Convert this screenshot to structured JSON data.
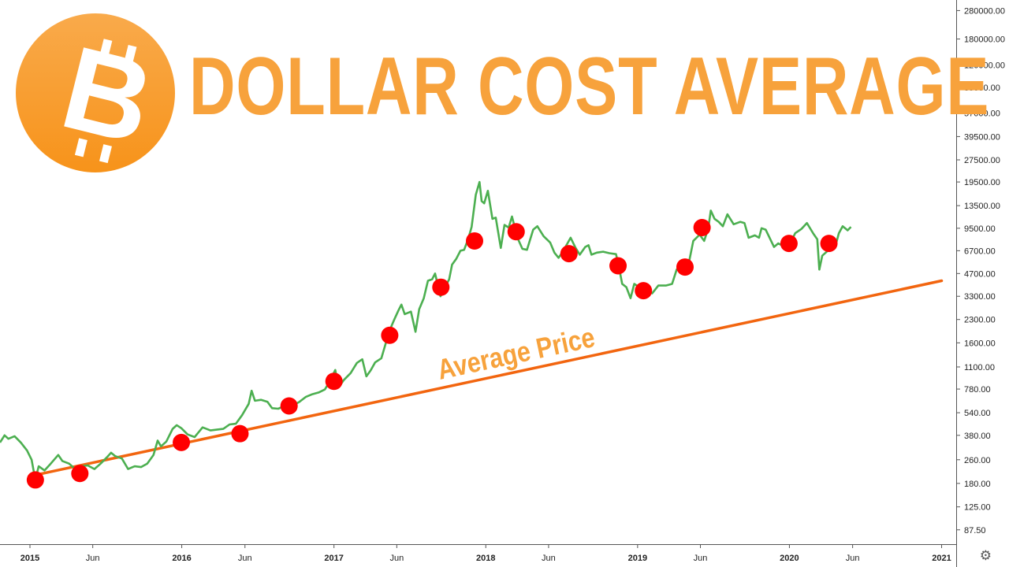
{
  "header": {
    "title": "DOLLAR COST AVERAGE"
  },
  "logo": {
    "glyph": "B",
    "color": "#f7931a"
  },
  "chart_data": {
    "type": "line",
    "ylabel": "",
    "xlabel": "",
    "yscale": "log",
    "ylim": [
      70,
      330000
    ],
    "yticks": [
      87.5,
      125,
      180,
      260,
      380,
      540,
      780,
      1100,
      1600,
      2300,
      3300,
      4700,
      6700,
      9500,
      13500,
      19500,
      27500,
      39500,
      57000,
      85000,
      120000,
      180000,
      280000
    ],
    "ytick_labels": [
      "87.50",
      "125.00",
      "180.00",
      "260.00",
      "380.00",
      "540.00",
      "780.00",
      "1100.00",
      "1600.00",
      "2300.00",
      "3300.00",
      "4700.00",
      "6700.00",
      "9500.00",
      "13500.00",
      "19500.00",
      "27500.00",
      "39500.00",
      "57000.00",
      "85000.00",
      "120000.00",
      "180000.00",
      "280000.00"
    ],
    "xlim": [
      "2014-10-21",
      "2021-02-05"
    ],
    "xticks": [
      {
        "date": "2015-01-01",
        "label": "2015",
        "major": true
      },
      {
        "date": "2015-06-01",
        "label": "Jun",
        "major": false
      },
      {
        "date": "2016-01-01",
        "label": "2016",
        "major": true
      },
      {
        "date": "2016-06-01",
        "label": "Jun",
        "major": false
      },
      {
        "date": "2017-01-01",
        "label": "2017",
        "major": true
      },
      {
        "date": "2017-06-01",
        "label": "Jun",
        "major": false
      },
      {
        "date": "2018-01-01",
        "label": "2018",
        "major": true
      },
      {
        "date": "2018-06-01",
        "label": "Jun",
        "major": false
      },
      {
        "date": "2019-01-01",
        "label": "2019",
        "major": true
      },
      {
        "date": "2019-06-01",
        "label": "Jun",
        "major": false
      },
      {
        "date": "2020-01-01",
        "label": "2020",
        "major": true
      },
      {
        "date": "2020-06-01",
        "label": "Jun",
        "major": false
      },
      {
        "date": "2021-01-01",
        "label": "2021",
        "major": true
      }
    ],
    "series": [
      {
        "kind": "price",
        "color": "#4caf50",
        "points": [
          [
            "2014-10-21",
            340
          ],
          [
            "2014-11-01",
            380
          ],
          [
            "2014-11-10",
            360
          ],
          [
            "2014-11-25",
            375
          ],
          [
            "2014-12-10",
            340
          ],
          [
            "2014-12-25",
            300
          ],
          [
            "2015-01-05",
            260
          ],
          [
            "2015-01-14",
            190
          ],
          [
            "2015-01-22",
            235
          ],
          [
            "2015-02-05",
            220
          ],
          [
            "2015-02-20",
            245
          ],
          [
            "2015-03-10",
            280
          ],
          [
            "2015-03-20",
            255
          ],
          [
            "2015-04-05",
            245
          ],
          [
            "2015-04-20",
            225
          ],
          [
            "2015-05-05",
            235
          ],
          [
            "2015-05-20",
            238
          ],
          [
            "2015-06-05",
            225
          ],
          [
            "2015-06-20",
            245
          ],
          [
            "2015-07-05",
            270
          ],
          [
            "2015-07-15",
            290
          ],
          [
            "2015-07-25",
            275
          ],
          [
            "2015-08-10",
            265
          ],
          [
            "2015-08-25",
            225
          ],
          [
            "2015-09-10",
            235
          ],
          [
            "2015-09-25",
            232
          ],
          [
            "2015-10-10",
            245
          ],
          [
            "2015-10-25",
            280
          ],
          [
            "2015-11-04",
            350
          ],
          [
            "2015-11-12",
            320
          ],
          [
            "2015-11-25",
            345
          ],
          [
            "2015-12-10",
            420
          ],
          [
            "2015-12-20",
            445
          ],
          [
            "2015-12-31",
            425
          ],
          [
            "2016-01-15",
            385
          ],
          [
            "2016-02-01",
            370
          ],
          [
            "2016-02-20",
            430
          ],
          [
            "2016-03-10",
            410
          ],
          [
            "2016-03-25",
            415
          ],
          [
            "2016-04-10",
            420
          ],
          [
            "2016-04-25",
            450
          ],
          [
            "2016-05-10",
            455
          ],
          [
            "2016-05-25",
            520
          ],
          [
            "2016-06-10",
            620
          ],
          [
            "2016-06-17",
            760
          ],
          [
            "2016-06-25",
            650
          ],
          [
            "2016-07-10",
            660
          ],
          [
            "2016-07-25",
            640
          ],
          [
            "2016-08-05",
            580
          ],
          [
            "2016-08-20",
            575
          ],
          [
            "2016-09-10",
            610
          ],
          [
            "2016-09-25",
            605
          ],
          [
            "2016-10-10",
            640
          ],
          [
            "2016-10-25",
            690
          ],
          [
            "2016-11-10",
            720
          ],
          [
            "2016-11-25",
            740
          ],
          [
            "2016-12-10",
            775
          ],
          [
            "2016-12-20",
            860
          ],
          [
            "2017-01-04",
            1050
          ],
          [
            "2017-01-12",
            800
          ],
          [
            "2017-01-25",
            900
          ],
          [
            "2017-02-10",
            1000
          ],
          [
            "2017-02-25",
            1170
          ],
          [
            "2017-03-10",
            1240
          ],
          [
            "2017-03-20",
            950
          ],
          [
            "2017-03-30",
            1040
          ],
          [
            "2017-04-10",
            1180
          ],
          [
            "2017-04-25",
            1260
          ],
          [
            "2017-05-10",
            1750
          ],
          [
            "2017-05-20",
            2100
          ],
          [
            "2017-05-26",
            2300
          ],
          [
            "2017-06-05",
            2650
          ],
          [
            "2017-06-12",
            2900
          ],
          [
            "2017-06-20",
            2500
          ],
          [
            "2017-07-05",
            2600
          ],
          [
            "2017-07-16",
            1900
          ],
          [
            "2017-07-25",
            2700
          ],
          [
            "2017-08-05",
            3200
          ],
          [
            "2017-08-15",
            4200
          ],
          [
            "2017-08-25",
            4300
          ],
          [
            "2017-09-01",
            4700
          ],
          [
            "2017-09-14",
            3300
          ],
          [
            "2017-09-25",
            3800
          ],
          [
            "2017-10-05",
            4300
          ],
          [
            "2017-10-12",
            5400
          ],
          [
            "2017-10-22",
            5900
          ],
          [
            "2017-11-01",
            6700
          ],
          [
            "2017-11-10",
            6800
          ],
          [
            "2017-11-20",
            8100
          ],
          [
            "2017-11-28",
            9700
          ],
          [
            "2017-12-08",
            16000
          ],
          [
            "2017-12-17",
            19500
          ],
          [
            "2017-12-22",
            14500
          ],
          [
            "2017-12-28",
            14000
          ],
          [
            "2018-01-06",
            17000
          ],
          [
            "2018-01-17",
            11000
          ],
          [
            "2018-01-25",
            11200
          ],
          [
            "2018-02-06",
            7000
          ],
          [
            "2018-02-15",
            10000
          ],
          [
            "2018-02-25",
            9600
          ],
          [
            "2018-03-05",
            11400
          ],
          [
            "2018-03-18",
            8200
          ],
          [
            "2018-03-30",
            6900
          ],
          [
            "2018-04-10",
            6800
          ],
          [
            "2018-04-25",
            9300
          ],
          [
            "2018-05-05",
            9800
          ],
          [
            "2018-05-20",
            8400
          ],
          [
            "2018-06-05",
            7600
          ],
          [
            "2018-06-15",
            6500
          ],
          [
            "2018-06-25",
            6000
          ],
          [
            "2018-07-05",
            6600
          ],
          [
            "2018-07-24",
            8200
          ],
          [
            "2018-08-05",
            7000
          ],
          [
            "2018-08-15",
            6300
          ],
          [
            "2018-08-28",
            7100
          ],
          [
            "2018-09-05",
            7300
          ],
          [
            "2018-09-12",
            6300
          ],
          [
            "2018-09-25",
            6500
          ],
          [
            "2018-10-10",
            6600
          ],
          [
            "2018-10-25",
            6450
          ],
          [
            "2018-11-10",
            6350
          ],
          [
            "2018-11-15",
            5600
          ],
          [
            "2018-11-25",
            4000
          ],
          [
            "2018-12-05",
            3800
          ],
          [
            "2018-12-15",
            3200
          ],
          [
            "2018-12-24",
            4000
          ],
          [
            "2019-01-05",
            3800
          ],
          [
            "2019-01-20",
            3600
          ],
          [
            "2019-02-05",
            3450
          ],
          [
            "2019-02-20",
            3900
          ],
          [
            "2019-03-10",
            3900
          ],
          [
            "2019-03-25",
            4000
          ],
          [
            "2019-04-05",
            5000
          ],
          [
            "2019-04-20",
            5300
          ],
          [
            "2019-05-05",
            5700
          ],
          [
            "2019-05-15",
            7800
          ],
          [
            "2019-05-30",
            8600
          ],
          [
            "2019-06-10",
            7800
          ],
          [
            "2019-06-20",
            9500
          ],
          [
            "2019-06-26",
            12500
          ],
          [
            "2019-07-05",
            11000
          ],
          [
            "2019-07-15",
            10500
          ],
          [
            "2019-07-25",
            9800
          ],
          [
            "2019-08-05",
            11800
          ],
          [
            "2019-08-20",
            10100
          ],
          [
            "2019-09-05",
            10500
          ],
          [
            "2019-09-15",
            10300
          ],
          [
            "2019-09-25",
            8200
          ],
          [
            "2019-10-10",
            8500
          ],
          [
            "2019-10-20",
            8200
          ],
          [
            "2019-10-26",
            9500
          ],
          [
            "2019-11-05",
            9300
          ],
          [
            "2019-11-25",
            7100
          ],
          [
            "2019-12-05",
            7500
          ],
          [
            "2019-12-18",
            7200
          ],
          [
            "2019-12-31",
            7200
          ],
          [
            "2020-01-15",
            8800
          ],
          [
            "2020-01-30",
            9400
          ],
          [
            "2020-02-12",
            10300
          ],
          [
            "2020-02-28",
            8700
          ],
          [
            "2020-03-08",
            8000
          ],
          [
            "2020-03-13",
            5000
          ],
          [
            "2020-03-20",
            6200
          ],
          [
            "2020-04-05",
            6800
          ],
          [
            "2020-04-20",
            7100
          ],
          [
            "2020-04-29",
            8800
          ],
          [
            "2020-05-08",
            9800
          ],
          [
            "2020-05-20",
            9200
          ],
          [
            "2020-05-28",
            9700
          ]
        ]
      },
      {
        "kind": "buy-dots",
        "color": "#ff0000",
        "points": [
          [
            "2015-01-14",
            190
          ],
          [
            "2015-05-01",
            210
          ],
          [
            "2015-12-31",
            340
          ],
          [
            "2016-05-20",
            390
          ],
          [
            "2016-09-15",
            600
          ],
          [
            "2017-01-01",
            880
          ],
          [
            "2017-05-15",
            1800
          ],
          [
            "2017-09-15",
            3800
          ],
          [
            "2017-12-05",
            7800
          ],
          [
            "2018-03-15",
            9000
          ],
          [
            "2018-07-20",
            6400
          ],
          [
            "2018-11-15",
            5300
          ],
          [
            "2019-01-15",
            3600
          ],
          [
            "2019-04-25",
            5200
          ],
          [
            "2019-06-05",
            9600
          ],
          [
            "2019-12-31",
            7500
          ],
          [
            "2020-04-05",
            7500
          ]
        ]
      },
      {
        "kind": "average-line",
        "color": "#f2650f",
        "start": [
          "2015-01-14",
          205
        ],
        "end": [
          "2021-01-01",
          4200
        ],
        "label": "Average Price",
        "label_color": "#f7a23c"
      }
    ]
  }
}
